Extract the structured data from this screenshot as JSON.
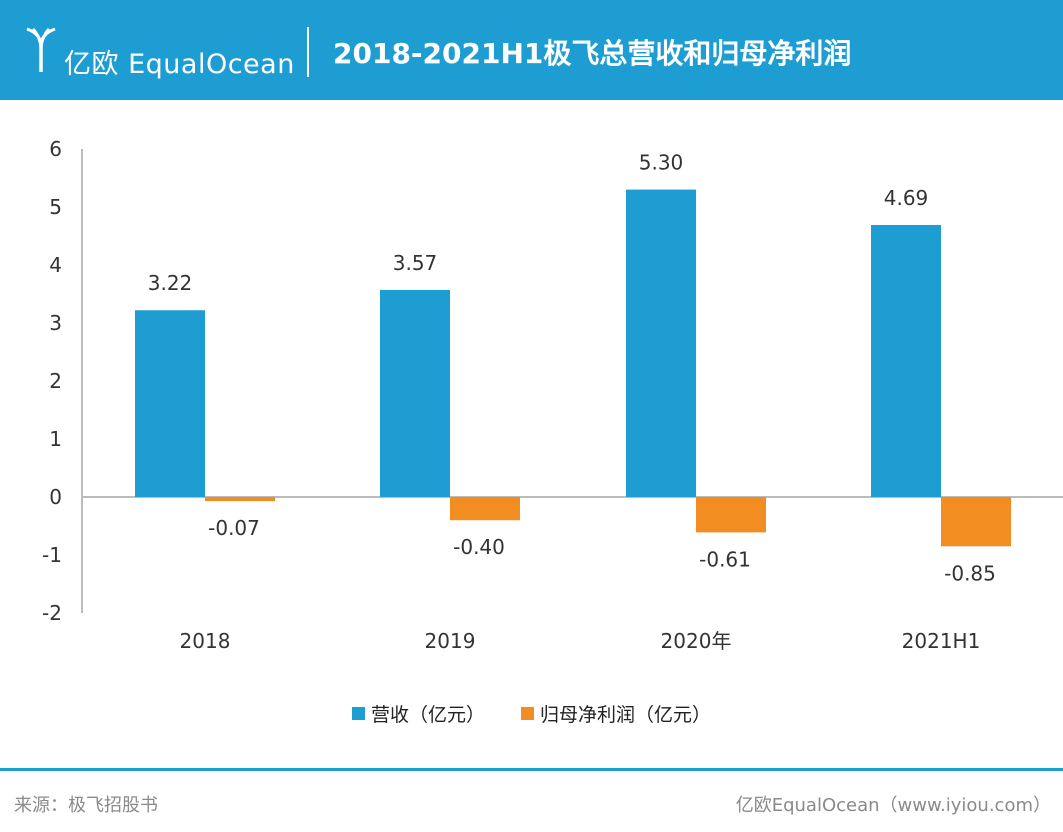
{
  "header": {
    "logo_text": "亿欧 EqualOcean",
    "title": "2018-2021H1极飞总营收和归母净利润"
  },
  "colors": {
    "brand": "#1e9dd3",
    "revenue": "#1e9dd3",
    "profit": "#f28d22"
  },
  "chart_data": {
    "type": "bar",
    "categories": [
      "2018",
      "2019",
      "2020年",
      "2021H1"
    ],
    "series": [
      {
        "name": "营收（亿元）",
        "values": [
          3.22,
          3.57,
          5.3,
          4.69
        ],
        "labels": [
          "3.22",
          "3.57",
          "5.30",
          "4.69"
        ]
      },
      {
        "name": "归母净利润（亿元）",
        "values": [
          -0.07,
          -0.4,
          -0.61,
          -0.85
        ],
        "labels": [
          "-0.07",
          "-0.40",
          "-0.61",
          "-0.85"
        ]
      }
    ],
    "ylim": [
      -2,
      6
    ],
    "yticks": [
      "-2",
      "-1",
      "0",
      "1",
      "2",
      "3",
      "4",
      "5",
      "6"
    ],
    "grid": false,
    "legend_position": "bottom"
  },
  "footer": {
    "source": "来源：极飞招股书",
    "credit": "亿欧EqualOcean（www.iyiou.com）"
  }
}
